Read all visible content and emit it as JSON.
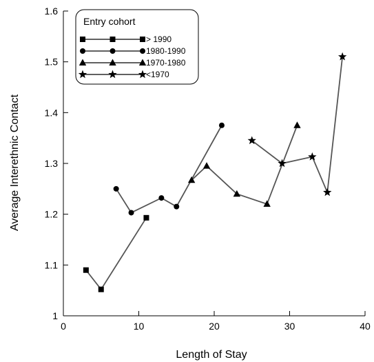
{
  "chart_data": {
    "type": "line",
    "xlabel": "Length of Stay",
    "ylabel": "Average Interethnic Contact",
    "xlim": [
      0,
      40
    ],
    "ylim": [
      1.0,
      1.6
    ],
    "x_ticks": [
      0,
      10,
      20,
      30,
      40
    ],
    "y_ticks": [
      1,
      1.1,
      1.2,
      1.3,
      1.4,
      1.5,
      1.6
    ],
    "grid": false,
    "legend": {
      "title": "Entry cohort",
      "placement": "top-left"
    },
    "series_color": "#555555",
    "series": [
      {
        "name": "> 1990",
        "marker": "square",
        "x": [
          3,
          5,
          11
        ],
        "y": [
          1.09,
          1.052,
          1.193
        ]
      },
      {
        "name": "1980-1990",
        "marker": "circle",
        "x": [
          7,
          9,
          13,
          15,
          21
        ],
        "y": [
          1.25,
          1.203,
          1.232,
          1.215,
          1.375
        ]
      },
      {
        "name": "1970-1980",
        "marker": "triangle",
        "x": [
          17,
          19,
          23,
          27,
          31
        ],
        "y": [
          1.267,
          1.295,
          1.24,
          1.22,
          1.375
        ]
      },
      {
        "name": "<1970",
        "marker": "star",
        "x": [
          25,
          29,
          33,
          35,
          37
        ],
        "y": [
          1.345,
          1.3,
          1.313,
          1.243,
          1.51
        ]
      }
    ]
  }
}
